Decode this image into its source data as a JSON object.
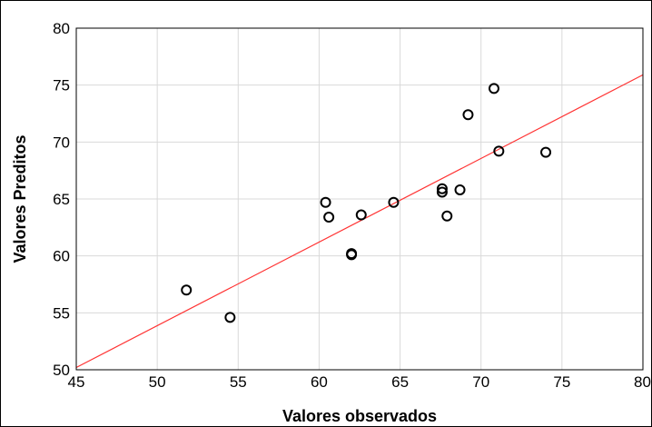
{
  "chart_data": {
    "type": "scatter",
    "title": "",
    "xlabel": "Valores observados",
    "ylabel": "Valores Preditos",
    "xlim": [
      45,
      80
    ],
    "ylim": [
      50,
      80
    ],
    "xticks": [
      45,
      50,
      55,
      60,
      65,
      70,
      75,
      80
    ],
    "yticks": [
      50,
      55,
      60,
      65,
      70,
      75,
      80
    ],
    "xtick_labels": [
      "45",
      "50",
      "55",
      "60",
      "65",
      "70",
      "75",
      "80"
    ],
    "ytick_labels": [
      "50",
      "55",
      "60",
      "65",
      "70",
      "75",
      "80"
    ],
    "grid": true,
    "legend": "none",
    "points": [
      {
        "x": 51.8,
        "y": 57.0
      },
      {
        "x": 54.5,
        "y": 54.6
      },
      {
        "x": 60.4,
        "y": 64.7
      },
      {
        "x": 60.6,
        "y": 63.4
      },
      {
        "x": 62.0,
        "y": 60.2
      },
      {
        "x": 62.0,
        "y": 60.1
      },
      {
        "x": 62.6,
        "y": 63.6
      },
      {
        "x": 64.6,
        "y": 64.7
      },
      {
        "x": 67.6,
        "y": 65.9
      },
      {
        "x": 67.6,
        "y": 65.6
      },
      {
        "x": 67.9,
        "y": 63.5
      },
      {
        "x": 68.7,
        "y": 65.8
      },
      {
        "x": 69.2,
        "y": 72.4
      },
      {
        "x": 70.8,
        "y": 74.7
      },
      {
        "x": 71.1,
        "y": 69.2
      },
      {
        "x": 74.0,
        "y": 69.1
      }
    ],
    "fit_line": {
      "x": [
        45,
        80
      ],
      "y": [
        50.2,
        75.9
      ]
    },
    "colors": {
      "points": "#000000",
      "fit_line": "#ff3333",
      "grid": "#d9d9d9",
      "frame": "#000000"
    }
  }
}
